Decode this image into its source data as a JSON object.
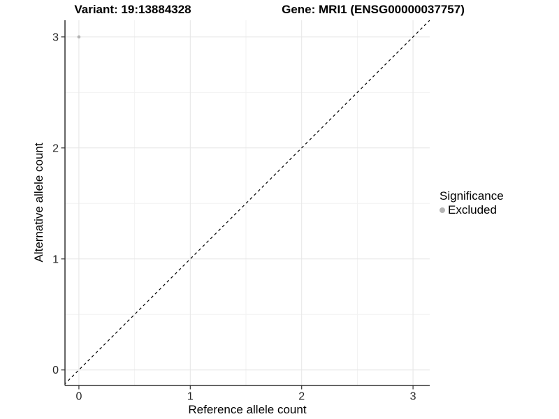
{
  "titles": {
    "variant": "Variant: 19:13884328",
    "gene": "Gene: MRI1 (ENSG00000037757)"
  },
  "legend": {
    "title": "Significance",
    "items": [
      {
        "label": "Excluded",
        "color": "#b4b4b4"
      }
    ]
  },
  "chart_data": {
    "type": "scatter",
    "title": "Variant: 19:13884328   Gene: MRI1 (ENSG00000037757)",
    "xlabel": "Reference allele count",
    "ylabel": "Alternative allele count",
    "xlim": [
      -0.125,
      3.15
    ],
    "ylim": [
      -0.14,
      3.15
    ],
    "x_ticks": [
      0,
      1,
      2,
      3
    ],
    "y_ticks": [
      0,
      1,
      2,
      3
    ],
    "x_minor_ticks": [
      0.5,
      1.5,
      2.5
    ],
    "y_minor_ticks": [
      0.5,
      1.5,
      2.5
    ],
    "grid": true,
    "legend_position": "right",
    "series": [
      {
        "name": "Excluded",
        "color": "#b4b4b4",
        "points": [
          {
            "x": 0,
            "y": 3
          }
        ]
      }
    ],
    "reference_line": {
      "type": "identity",
      "slope": 1,
      "intercept": 0,
      "style": "dashed",
      "color": "#000000"
    },
    "colors": {
      "background": "#ffffff",
      "grid_major": "#e6e6e6",
      "grid_minor": "#f2f2f2",
      "axis_line": "#333333",
      "tick_label": "#262626",
      "point_excluded": "#b4b4b4"
    }
  }
}
